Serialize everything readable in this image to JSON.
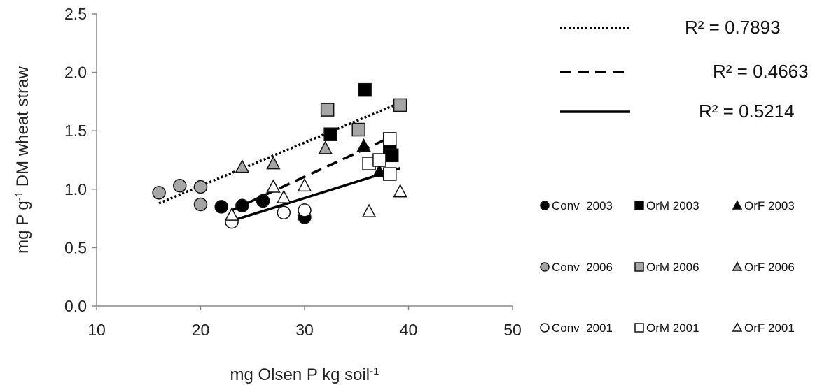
{
  "chart_data": {
    "type": "scatter",
    "title": "",
    "xlabel": {
      "pre": "mg Olsen P kg soil",
      "sup": "-1",
      "post": ""
    },
    "ylabel": {
      "pre": "mg P g",
      "sup": "-1",
      "post": " DM wheat straw"
    },
    "xlim": [
      10,
      50
    ],
    "ylim": [
      0.0,
      2.5
    ],
    "xticks": [
      10,
      20,
      30,
      40,
      50
    ],
    "xtick_labels": [
      "10",
      "20",
      "30",
      "40",
      "50"
    ],
    "yticks": [
      0.0,
      0.5,
      1.0,
      1.5,
      2.0,
      2.5
    ],
    "ytick_labels": [
      "0.0",
      "0.5",
      "1.0",
      "1.5",
      "2.0",
      "2.5"
    ],
    "grid": false,
    "legend_placement": "right",
    "series": [
      {
        "name": "Conv  2003",
        "marker": "circle",
        "fill": "#000000",
        "x": [
          22,
          24,
          26,
          30
        ],
        "y": [
          0.85,
          0.86,
          0.9,
          0.76
        ]
      },
      {
        "name": "OrM 2003",
        "marker": "square",
        "fill": "#000000",
        "x": [
          32.5,
          35.8,
          38.2,
          38.4
        ],
        "y": [
          1.47,
          1.85,
          1.35,
          1.29
        ]
      },
      {
        "name": "OrF 2003",
        "marker": "triangle",
        "fill": "#000000",
        "x": [
          35.7,
          37.2
        ],
        "y": [
          1.37,
          1.15
        ]
      },
      {
        "name": "Conv  2006",
        "marker": "circle",
        "fill": "#a6a6a6",
        "x": [
          16,
          18,
          20,
          20
        ],
        "y": [
          0.97,
          1.03,
          1.02,
          0.87
        ]
      },
      {
        "name": "OrM 2006",
        "marker": "square",
        "fill": "#a6a6a6",
        "x": [
          32.2,
          35.2,
          39.2
        ],
        "y": [
          1.68,
          1.51,
          1.72
        ]
      },
      {
        "name": "OrF 2006",
        "marker": "triangle",
        "fill": "#a6a6a6",
        "x": [
          24,
          27,
          32
        ],
        "y": [
          1.19,
          1.22,
          1.35
        ]
      },
      {
        "name": "Conv  2001",
        "marker": "circle",
        "fill": "#ffffff",
        "x": [
          23,
          28,
          30
        ],
        "y": [
          0.72,
          0.8,
          0.82
        ]
      },
      {
        "name": "OrM 2001",
        "marker": "square",
        "fill": "#ffffff",
        "x": [
          36.2,
          37.2,
          38.2,
          38.2
        ],
        "y": [
          1.22,
          1.25,
          1.43,
          1.13
        ]
      },
      {
        "name": "OrF 2001",
        "marker": "triangle",
        "fill": "#ffffff",
        "x": [
          23,
          27,
          28,
          30,
          36.2,
          39.2
        ],
        "y": [
          0.78,
          1.02,
          0.93,
          1.03,
          0.81,
          0.98
        ]
      }
    ],
    "trendlines": [
      {
        "style": "dotted",
        "x": [
          16,
          39.2
        ],
        "y": [
          0.88,
          1.74
        ],
        "r2": "R² = 0.7893"
      },
      {
        "style": "dashed",
        "x": [
          23,
          38.4
        ],
        "y": [
          0.82,
          1.45
        ],
        "r2": "R² = 0.4663"
      },
      {
        "style": "solid",
        "x": [
          23,
          39.2
        ],
        "y": [
          0.73,
          1.18
        ],
        "r2": "R² = 0.5214"
      }
    ]
  }
}
